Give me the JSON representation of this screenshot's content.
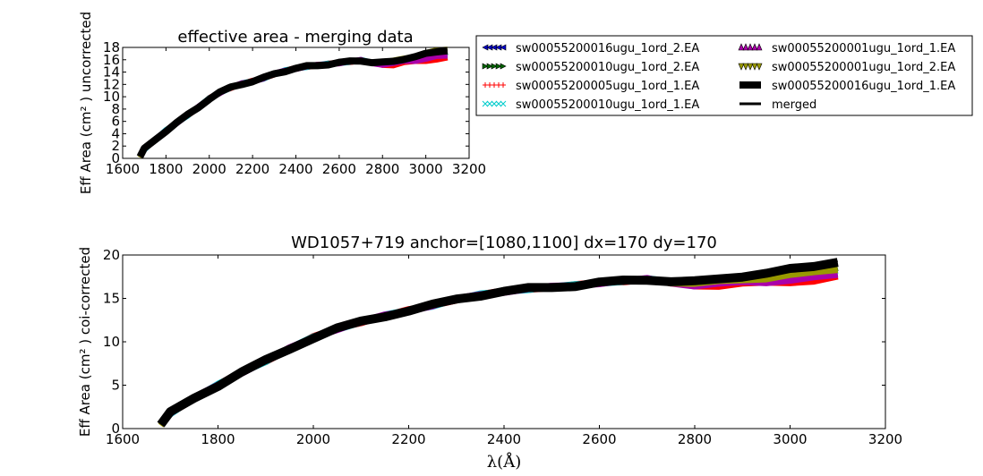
{
  "chart_data": [
    {
      "type": "line",
      "title": "effective area - merging data",
      "xlabel": "",
      "ylabel": "Eff Area (cm² ) uncorrected",
      "xlim": [
        1600,
        3200
      ],
      "ylim": [
        0,
        18
      ],
      "xticks": [
        1600,
        1800,
        2000,
        2200,
        2400,
        2600,
        2800,
        3000,
        3200
      ],
      "yticks": [
        0,
        2,
        4,
        6,
        8,
        10,
        12,
        14,
        16,
        18
      ],
      "grid": false,
      "x": [
        1680,
        1700,
        1750,
        1800,
        1850,
        1900,
        1950,
        2000,
        2050,
        2100,
        2150,
        2200,
        2250,
        2300,
        2350,
        2400,
        2450,
        2500,
        2550,
        2600,
        2650,
        2700,
        2750,
        2800,
        2850,
        2900,
        2950,
        3000,
        3050,
        3100
      ],
      "merged": [
        0.3,
        1.5,
        3.0,
        4.5,
        5.8,
        7.0,
        8.3,
        9.7,
        10.7,
        11.5,
        12.1,
        12.5,
        13.0,
        13.7,
        14.2,
        14.6,
        14.9,
        15.1,
        15.3,
        15.5,
        15.7,
        15.9,
        15.6,
        15.5,
        15.7,
        16.2,
        16.5,
        16.9,
        17.3,
        17.6
      ],
      "series": [
        {
          "name": "sw00055200016ugu_1ord_2.EA",
          "color": "#0000cc",
          "end_offset": -0.8
        },
        {
          "name": "sw00055200010ugu_1ord_2.EA",
          "color": "#006400",
          "end_offset": -0.4
        },
        {
          "name": "sw00055200005ugu_1ord_1.EA",
          "color": "#ff0000",
          "end_offset": -1.4
        },
        {
          "name": "sw00055200010ugu_1ord_1.EA",
          "color": "#00cccc",
          "end_offset": -0.6
        },
        {
          "name": "sw00055200001ugu_1ord_1.EA",
          "color": "#aa00aa",
          "end_offset": -1.0
        },
        {
          "name": "sw00055200001ugu_1ord_2.EA",
          "color": "#999900",
          "end_offset": 0.2
        },
        {
          "name": "sw00055200016ugu_1ord_1.EA",
          "color": "#000000",
          "end_offset": 0.0
        }
      ],
      "legend": {
        "placement": "right",
        "entries": [
          {
            "label": "sw00055200016ugu_1ord_2.EA",
            "marker": "triangle-left",
            "color": "#0000cc"
          },
          {
            "label": "sw00055200010ugu_1ord_2.EA",
            "marker": "triangle-right",
            "color": "#006400"
          },
          {
            "label": "sw00055200005ugu_1ord_1.EA",
            "marker": "plus",
            "color": "#ff0000"
          },
          {
            "label": "sw00055200010ugu_1ord_1.EA",
            "marker": "x",
            "color": "#00cccc"
          },
          {
            "label": "sw00055200001ugu_1ord_1.EA",
            "marker": "triangle-up",
            "color": "#aa00aa"
          },
          {
            "label": "sw00055200001ugu_1ord_2.EA",
            "marker": "triangle-down",
            "color": "#999900"
          },
          {
            "label": "sw00055200016ugu_1ord_1.EA",
            "marker": "square",
            "color": "#000000"
          },
          {
            "label": "merged",
            "marker": "line",
            "color": "#000000"
          }
        ]
      }
    },
    {
      "type": "line",
      "title": "WD1057+719  anchor=[1080,1100] dx=170 dy=170",
      "xlabel": "λ(Å)",
      "ylabel": "Eff Area (cm² ) coi-corrected",
      "xlim": [
        1600,
        3200
      ],
      "ylim": [
        0,
        20
      ],
      "xticks": [
        1600,
        1800,
        2000,
        2200,
        2400,
        2600,
        2800,
        3000,
        3200
      ],
      "yticks": [
        0,
        5,
        10,
        15,
        20
      ],
      "grid": false,
      "x": [
        1680,
        1700,
        1750,
        1800,
        1850,
        1900,
        1950,
        2000,
        2050,
        2100,
        2150,
        2200,
        2250,
        2300,
        2350,
        2400,
        2450,
        2500,
        2550,
        2600,
        2650,
        2700,
        2750,
        2800,
        2850,
        2900,
        2950,
        3000,
        3050,
        3100
      ],
      "merged": [
        0.5,
        1.8,
        3.5,
        5.0,
        6.5,
        7.8,
        9.2,
        10.5,
        11.5,
        12.3,
        13.0,
        13.6,
        14.2,
        14.9,
        15.4,
        15.8,
        16.1,
        16.3,
        16.5,
        16.8,
        17.0,
        17.2,
        17.0,
        16.9,
        17.2,
        17.6,
        17.9,
        18.3,
        18.7,
        19.3
      ],
      "series": [
        {
          "name": "sw00055200016ugu_1ord_2.EA",
          "color": "#0000cc",
          "end_offset": -1.4
        },
        {
          "name": "sw00055200010ugu_1ord_2.EA",
          "color": "#006400",
          "end_offset": -0.8
        },
        {
          "name": "sw00055200005ugu_1ord_1.EA",
          "color": "#ff0000",
          "end_offset": -1.9
        },
        {
          "name": "sw00055200010ugu_1ord_1.EA",
          "color": "#00cccc",
          "end_offset": -1.2
        },
        {
          "name": "sw00055200001ugu_1ord_1.EA",
          "color": "#aa00aa",
          "end_offset": -1.6
        },
        {
          "name": "sw00055200001ugu_1ord_2.EA",
          "color": "#999900",
          "end_offset": -0.9
        },
        {
          "name": "sw00055200016ugu_1ord_1.EA",
          "color": "#000000",
          "end_offset": 0.0
        }
      ]
    }
  ]
}
